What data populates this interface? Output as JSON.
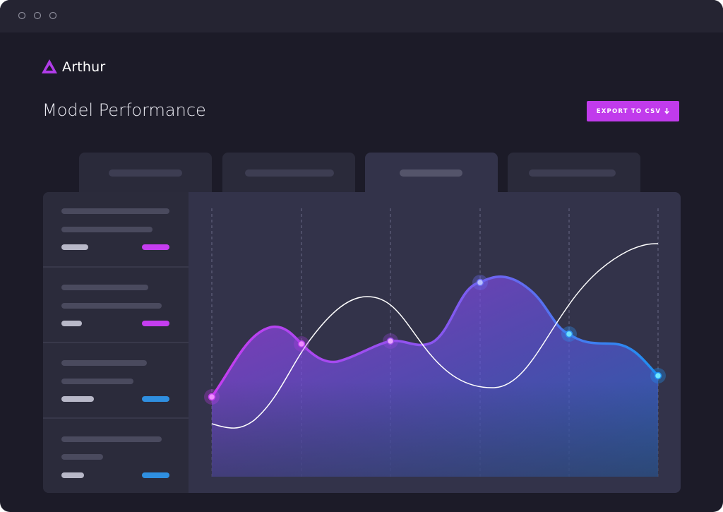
{
  "header": {
    "brand": "Arthur",
    "title": "Model Performance",
    "export_button": "EXPORT TO CSV"
  }
}
